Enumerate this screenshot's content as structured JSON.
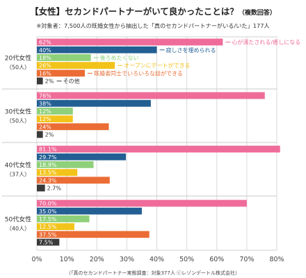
{
  "header": {
    "title": "【女性】セカンドパートナーがいて良かったことは？",
    "title_note": "（複数回答）",
    "note": "※対象者：7,500人の既婚女性から抽出した「真のセカンドパートナーがいる/いた」177人"
  },
  "footer": {
    "source": "（「真のセカンドパートナー実態調査：対象377人 ⓒレゾンデートル株式会社）"
  },
  "chart_data": {
    "type": "bar",
    "orientation": "horizontal",
    "xlim": [
      0,
      80
    ],
    "x_ticks": [
      "0%",
      "10%",
      "20%",
      "30%",
      "40%",
      "50%",
      "60%",
      "70%",
      "80%"
    ],
    "grid": true,
    "series": [
      {
        "name": "心が満たされる/癒しになる",
        "color": "#ef6c9a"
      },
      {
        "name": "寂しさを埋められる",
        "color": "#235f93"
      },
      {
        "name": "後ろめたくない",
        "color": "#8fd07a"
      },
      {
        "name": "オープンにデートができる",
        "color": "#f2c31a"
      },
      {
        "name": "既婚者同士でいろいろな話ができる",
        "color": "#eb6d35"
      },
      {
        "name": "その他",
        "color": "#3a3a3a"
      }
    ],
    "groups": [
      {
        "label": "20代女性",
        "n_label": "（50人）",
        "values": [
          62,
          40,
          18,
          26,
          16,
          2
        ],
        "value_labels": [
          "62%",
          "40%",
          "18%",
          "26%",
          "16%",
          "2%"
        ],
        "annotations": [
          "心が満たされる/癒しになる",
          "寂しさを埋められる",
          "後ろめたくない",
          "オープンにデートができる",
          "既婚者同士でいろいろな話ができる",
          "その他"
        ]
      },
      {
        "label": "30代女性",
        "n_label": "（50人）",
        "values": [
          76,
          38,
          12,
          12,
          24,
          2
        ],
        "value_labels": [
          "76%",
          "38%",
          "12%",
          "12%",
          "24%",
          "2%"
        ]
      },
      {
        "label": "40代女性",
        "n_label": "（37人）",
        "values": [
          81.1,
          29.7,
          18.9,
          13.5,
          24.3,
          2.7
        ],
        "value_labels": [
          "81.1%",
          "29.7%",
          "18.9%",
          "13.5%",
          "24.3%",
          "2.7%"
        ]
      },
      {
        "label": "50代女性",
        "n_label": "（40人）",
        "values": [
          70.0,
          35.0,
          17.5,
          12.5,
          37.5,
          7.5
        ],
        "value_labels": [
          "70.0%",
          "35.0%",
          "17.5%",
          "12.5%",
          "37.5%",
          "7.5%"
        ]
      }
    ]
  }
}
